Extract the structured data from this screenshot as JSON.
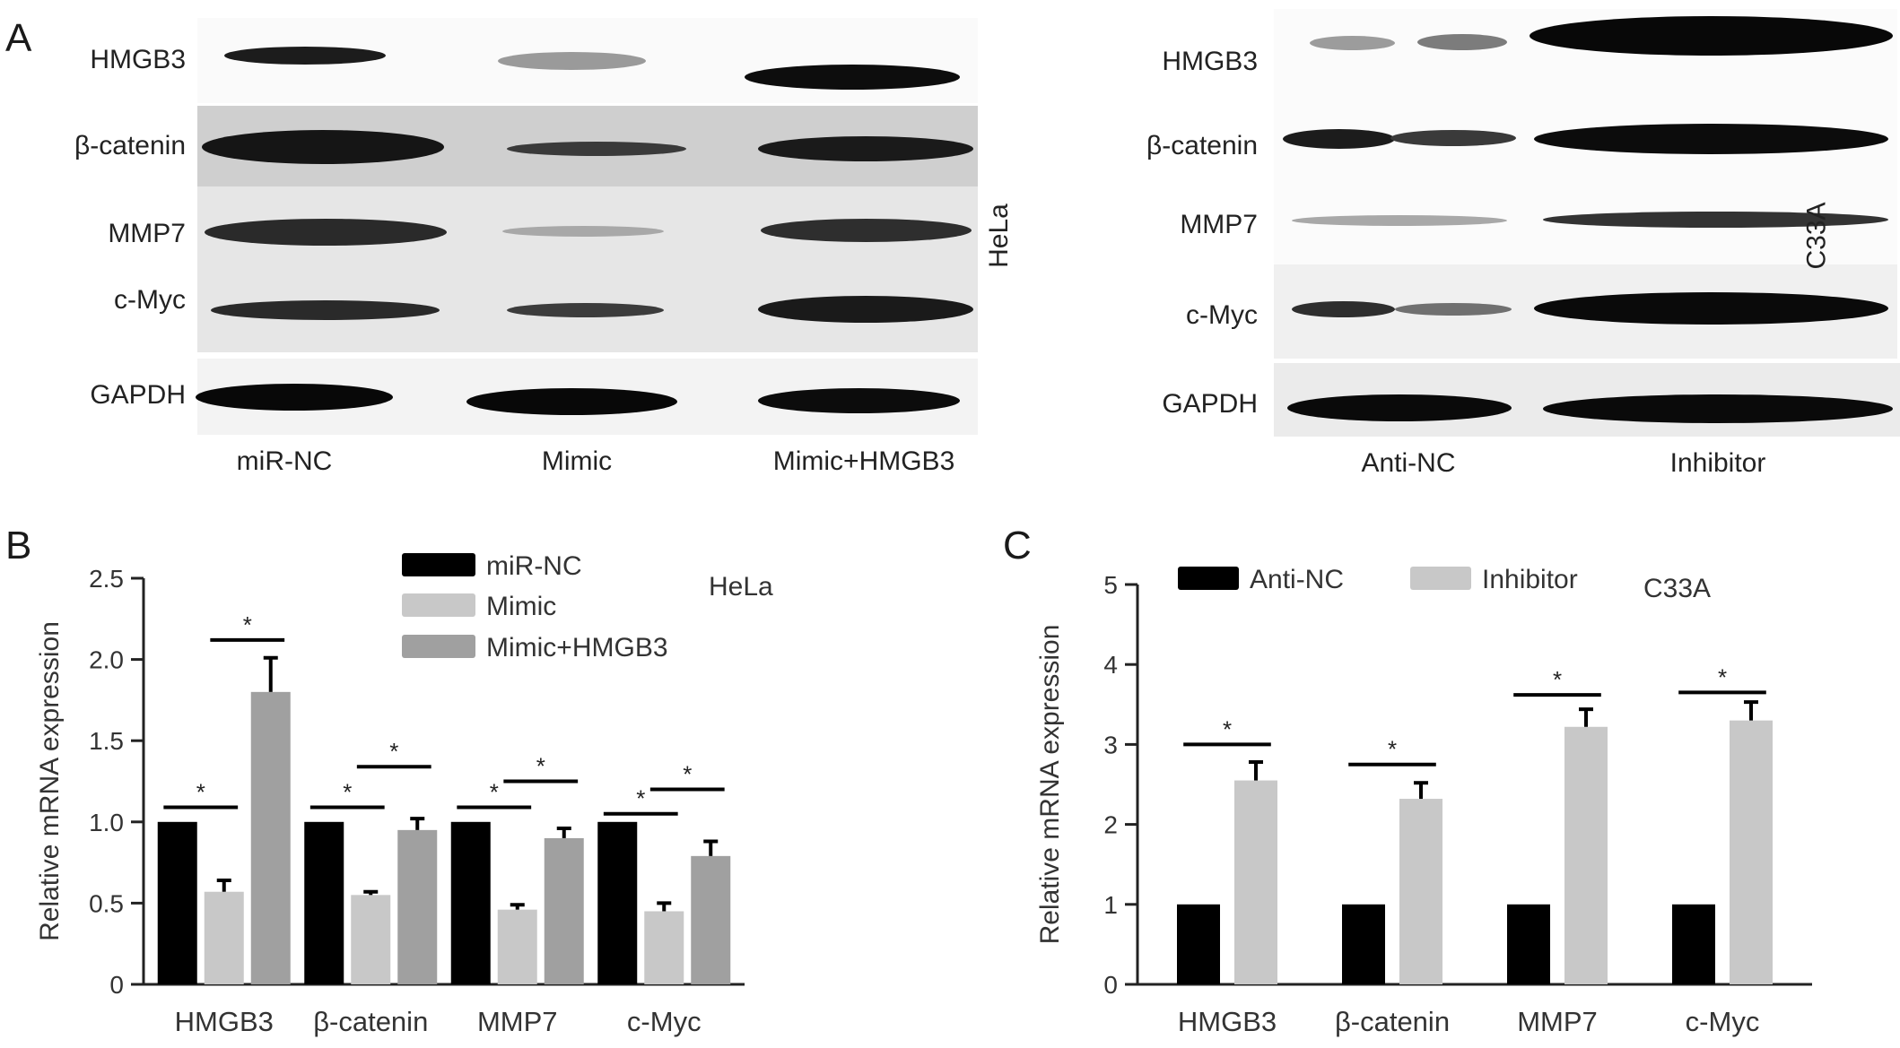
{
  "panelA": {
    "letter": "A",
    "left": {
      "cell_line": "HeLa",
      "rows": [
        "HMGB3",
        "β-catenin",
        "MMP7",
        "c-Myc",
        "GAPDH"
      ],
      "lanes": [
        "miR-NC",
        "Mimic",
        "Mimic+HMGB3"
      ]
    },
    "right": {
      "cell_line": "C33A",
      "rows": [
        "HMGB3",
        "β-catenin",
        "MMP7",
        "c-Myc",
        "GAPDH"
      ],
      "lanes": [
        "Anti-NC",
        "Inhibitor"
      ]
    }
  },
  "panelB": {
    "letter": "B"
  },
  "panelC": {
    "letter": "C"
  },
  "chart_data": [
    {
      "type": "bar",
      "panel": "B",
      "annotation": "HeLa",
      "ylabel": "Relative mRNA expression",
      "ylim": [
        0,
        2.5
      ],
      "yticks": [
        "0",
        "0.5",
        "1.0",
        "1.5",
        "2.0",
        "2.5"
      ],
      "categories": [
        "HMGB3",
        "β-catenin",
        "MMP7",
        "c-Myc"
      ],
      "legend_position": "top-center",
      "series": [
        {
          "name": "miR-NC",
          "color": "#000000",
          "values": [
            1.0,
            1.0,
            1.0,
            1.0
          ],
          "errors": [
            0,
            0,
            0,
            0
          ]
        },
        {
          "name": "Mimic",
          "color": "#c8c8c8",
          "values": [
            0.57,
            0.55,
            0.46,
            0.45
          ],
          "errors": [
            0.07,
            0.02,
            0.03,
            0.05
          ]
        },
        {
          "name": "Mimic+HMGB3",
          "color": "#a0a0a0",
          "values": [
            1.8,
            0.95,
            0.9,
            0.79
          ],
          "errors": [
            0.21,
            0.07,
            0.06,
            0.09
          ]
        }
      ],
      "significance": [
        {
          "category": 0,
          "from": 0,
          "to": 1,
          "y": 1.09,
          "label": "*"
        },
        {
          "category": 0,
          "from": 1,
          "to": 2,
          "y": 2.12,
          "label": "*"
        },
        {
          "category": 1,
          "from": 0,
          "to": 1,
          "y": 1.09,
          "label": "*"
        },
        {
          "category": 1,
          "from": 1,
          "to": 2,
          "y": 1.34,
          "label": "*"
        },
        {
          "category": 2,
          "from": 0,
          "to": 1,
          "y": 1.09,
          "label": "*"
        },
        {
          "category": 2,
          "from": 1,
          "to": 2,
          "y": 1.25,
          "label": "*"
        },
        {
          "category": 3,
          "from": 0,
          "to": 1,
          "y": 1.05,
          "label": "*"
        },
        {
          "category": 3,
          "from": 1,
          "to": 2,
          "y": 1.2,
          "label": "*"
        }
      ]
    },
    {
      "type": "bar",
      "panel": "C",
      "annotation": "C33A",
      "ylabel": "Relative mRNA expression",
      "ylim": [
        0,
        5
      ],
      "yticks": [
        "0",
        "1",
        "2",
        "3",
        "4",
        "5"
      ],
      "categories": [
        "HMGB3",
        "β-catenin",
        "MMP7",
        "c-Myc"
      ],
      "legend_position": "top",
      "series": [
        {
          "name": "Anti-NC",
          "color": "#000000",
          "values": [
            1,
            1,
            1,
            1
          ],
          "errors": [
            0,
            0,
            0,
            0
          ]
        },
        {
          "name": "Inhibitor",
          "color": "#c8c8c8",
          "values": [
            2.55,
            2.32,
            3.22,
            3.3
          ],
          "errors": [
            0.23,
            0.2,
            0.22,
            0.23
          ]
        }
      ],
      "significance": [
        {
          "category": 0,
          "from": 0,
          "to": 1,
          "y": 3.0,
          "label": "*"
        },
        {
          "category": 1,
          "from": 0,
          "to": 1,
          "y": 2.75,
          "label": "*"
        },
        {
          "category": 2,
          "from": 0,
          "to": 1,
          "y": 3.62,
          "label": "*"
        },
        {
          "category": 3,
          "from": 0,
          "to": 1,
          "y": 3.65,
          "label": "*"
        }
      ]
    }
  ]
}
